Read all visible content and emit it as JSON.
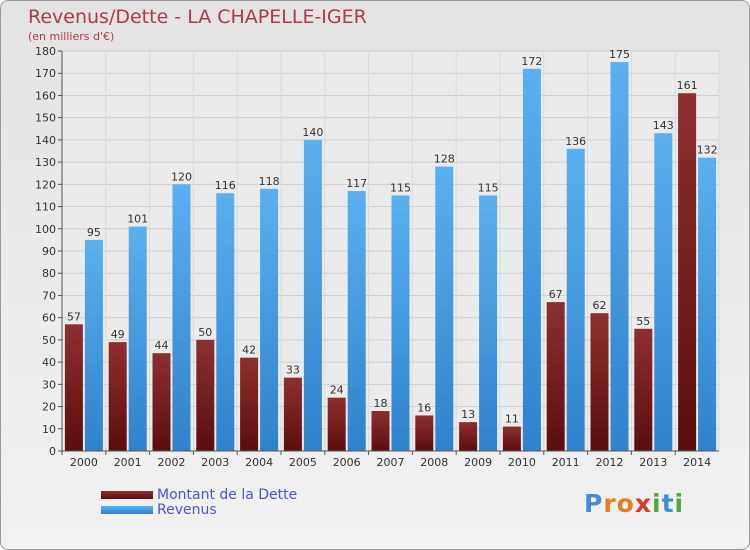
{
  "title": "Revenus/Dette - LA CHAPELLE-IGER",
  "subtitle": "(en milliers d'€)",
  "logo": {
    "chars": [
      "P",
      "r",
      "o",
      "x",
      "i",
      "t",
      "i"
    ],
    "colors": [
      "#3c8fd6",
      "#e87c1e",
      "#e87c1e",
      "#d93a2b",
      "#53a93f",
      "#3c8fd6",
      "#53a93f"
    ]
  },
  "chart_data": {
    "type": "bar",
    "categories": [
      "2000",
      "2001",
      "2002",
      "2003",
      "2004",
      "2005",
      "2006",
      "2007",
      "2008",
      "2009",
      "2010",
      "2011",
      "2012",
      "2013",
      "2014"
    ],
    "series": [
      {
        "name": "Montant de la Dette",
        "color": "#7b1f1f",
        "values": [
          57,
          49,
          44,
          50,
          42,
          33,
          24,
          18,
          16,
          13,
          11,
          67,
          62,
          55,
          161
        ]
      },
      {
        "name": "Revenus",
        "color": "#4aa0e6",
        "values": [
          95,
          101,
          120,
          116,
          118,
          140,
          117,
          115,
          128,
          115,
          172,
          136,
          175,
          143,
          132
        ]
      }
    ],
    "ylim": [
      0,
      180
    ],
    "yticks": [
      0,
      10,
      20,
      30,
      40,
      50,
      60,
      70,
      80,
      90,
      100,
      110,
      120,
      130,
      140,
      150,
      160,
      170,
      180
    ],
    "grid": true,
    "legend_position": "bottom-left"
  }
}
